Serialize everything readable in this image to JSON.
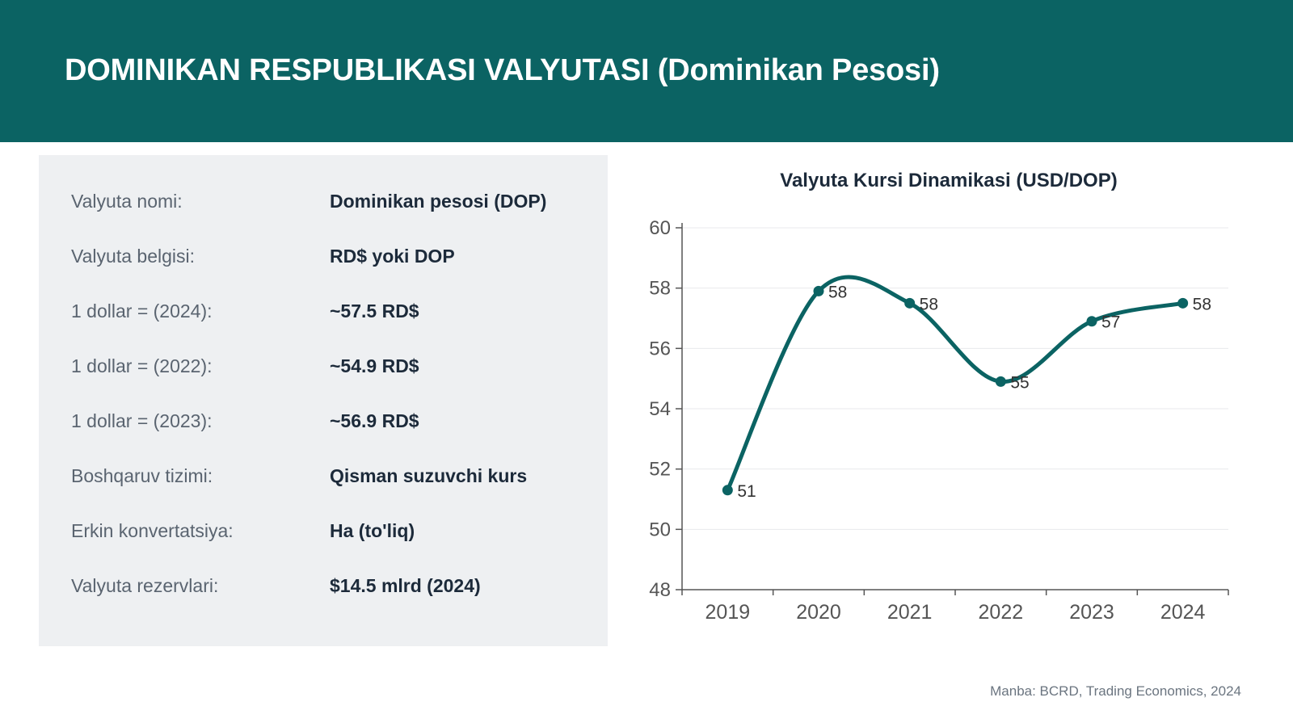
{
  "header": {
    "title": "DOMINIKAN RESPUBLIKASI VALYUTASI (Dominikan Pesosi)"
  },
  "info": [
    {
      "label": "Valyuta nomi:",
      "value": "Dominikan pesosi (DOP)"
    },
    {
      "label": "Valyuta belgisi:",
      "value": "RD$ yoki DOP"
    },
    {
      "label": "1 dollar = (2024):",
      "value": "~57.5 RD$"
    },
    {
      "label": "1 dollar = (2022):",
      "value": "~54.9 RD$"
    },
    {
      "label": "1 dollar = (2023):",
      "value": "~56.9 RD$"
    },
    {
      "label": "Boshqaruv tizimi:",
      "value": "Qisman suzuvchi kurs"
    },
    {
      "label": "Erkin konvertatsiya:",
      "value": "Ha (to'liq)"
    },
    {
      "label": "Valyuta rezervlari:",
      "value": "$14.5 mlrd (2024)"
    }
  ],
  "chart_data": {
    "type": "line",
    "title": "Valyuta Kursi Dinamikasi (USD/DOP)",
    "xlabel": "",
    "ylabel": "",
    "x": [
      "2019",
      "2020",
      "2021",
      "2022",
      "2023",
      "2024"
    ],
    "series": [
      {
        "values": [
          51.3,
          57.9,
          57.5,
          54.9,
          56.9,
          57.5
        ]
      }
    ],
    "data_labels": [
      "51",
      "58",
      "58",
      "55",
      "57",
      "58"
    ],
    "ylim": [
      48,
      60
    ],
    "yticks": [
      "48",
      "50",
      "52",
      "54",
      "56",
      "58",
      "60"
    ],
    "grid": true,
    "smooth": true,
    "line_color": "#0b6363"
  },
  "footer": {
    "source": "Manba: BCRD, Trading Economics, 2024"
  }
}
